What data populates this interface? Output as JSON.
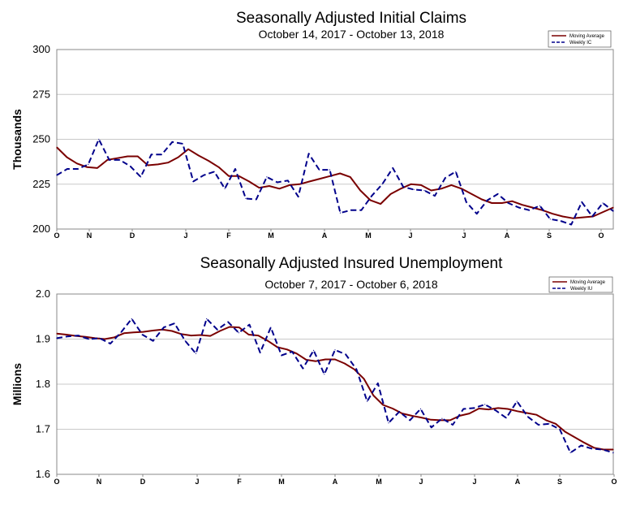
{
  "chart_data": [
    {
      "type": "line",
      "title": "Seasonally Adjusted Initial Claims",
      "subtitle": "October 14, 2017 - October 13, 2018",
      "xlabel": "",
      "ylabel": "Thousands",
      "ylim": [
        200,
        300
      ],
      "yticks": [
        "300",
        "275",
        "250",
        "225",
        "200"
      ],
      "ytick_values": [
        300,
        275,
        250,
        225,
        200
      ],
      "xtick_labels": [
        "O",
        "N",
        "D",
        "J",
        "F",
        "M",
        "A",
        "M",
        "J",
        "J",
        "A",
        "S",
        "O"
      ],
      "grid": "horizontal",
      "legend": "top-right",
      "series": [
        {
          "name": "Moving Average",
          "style": "solid",
          "color": "#7a0000",
          "values": [
            245.5,
            240,
            236.5,
            234.5,
            234,
            238.5,
            239.5,
            240.5,
            240.5,
            235.5,
            236,
            237,
            240,
            244.5,
            241,
            238,
            234.5,
            229.5,
            229.5,
            226.5,
            223,
            224,
            222.5,
            224.5,
            225,
            226.5,
            228,
            229.5,
            231,
            229,
            221.5,
            216,
            214,
            219.5,
            222.5,
            225,
            224.5,
            221.5,
            222.5,
            224.5,
            222.5,
            219.5,
            216.5,
            214.5,
            214.5,
            215.5,
            213.5,
            212,
            210.5,
            208.5,
            207,
            206,
            206.5,
            207,
            209.5,
            212
          ]
        },
        {
          "name": "Weekly IC",
          "style": "dashed",
          "color": "#00008b",
          "values": [
            230,
            233.5,
            233.5,
            236,
            250,
            238.5,
            238.5,
            235,
            229,
            241.5,
            241.5,
            248.5,
            247.5,
            226.5,
            230,
            232,
            222.5,
            233.5,
            217,
            216.5,
            229,
            226,
            227,
            218,
            242,
            233,
            233,
            209,
            210.5,
            210.5,
            218.5,
            225,
            234,
            223.5,
            222,
            221.5,
            218.5,
            228.5,
            232,
            215,
            208.5,
            216,
            219.5,
            214.5,
            212,
            210.5,
            213,
            205.5,
            204.5,
            202.5,
            215,
            207,
            214.5,
            210
          ]
        }
      ]
    },
    {
      "type": "line",
      "title": "Seasonally Adjusted Insured Unemployment",
      "subtitle": "October 7, 2017 - October 6, 2018",
      "xlabel": "",
      "ylabel": "Millions",
      "ylim": [
        1.6,
        2.0
      ],
      "yticks": [
        "2.0",
        "1.9",
        "1.8",
        "1.7",
        "1.6"
      ],
      "ytick_values": [
        2.0,
        1.9,
        1.8,
        1.7,
        1.6
      ],
      "xtick_labels": [
        "O",
        "N",
        "D",
        "J",
        "F",
        "M",
        "A",
        "M",
        "J",
        "J",
        "A",
        "S",
        "O"
      ],
      "grid": "horizontal",
      "legend": "top-right",
      "series": [
        {
          "name": "Moving Average",
          "style": "solid",
          "color": "#7a0000",
          "values": [
            1.912,
            1.91,
            1.907,
            1.905,
            1.902,
            1.9,
            1.904,
            1.913,
            1.915,
            1.916,
            1.919,
            1.921,
            1.918,
            1.911,
            1.908,
            1.909,
            1.907,
            1.918,
            1.927,
            1.926,
            1.91,
            1.908,
            1.896,
            1.882,
            1.877,
            1.868,
            1.854,
            1.851,
            1.855,
            1.855,
            1.846,
            1.833,
            1.812,
            1.775,
            1.754,
            1.746,
            1.735,
            1.73,
            1.726,
            1.721,
            1.72,
            1.72,
            1.73,
            1.735,
            1.746,
            1.744,
            1.747,
            1.745,
            1.74,
            1.736,
            1.732,
            1.72,
            1.712,
            1.694,
            1.682,
            1.67,
            1.659,
            1.655,
            1.655
          ]
        },
        {
          "name": "Weekly IU",
          "style": "dashed",
          "color": "#00008b",
          "values": [
            1.902,
            1.906,
            1.908,
            1.9,
            1.902,
            1.89,
            1.915,
            1.945,
            1.91,
            1.896,
            1.926,
            1.935,
            1.896,
            1.868,
            1.945,
            1.921,
            1.938,
            1.914,
            1.932,
            1.87,
            1.926,
            1.864,
            1.872,
            1.835,
            1.875,
            1.822,
            1.876,
            1.866,
            1.833,
            1.762,
            1.802,
            1.714,
            1.739,
            1.72,
            1.745,
            1.704,
            1.724,
            1.71,
            1.745,
            1.747,
            1.755,
            1.742,
            1.725,
            1.762,
            1.728,
            1.71,
            1.712,
            1.7,
            1.648,
            1.664,
            1.657,
            1.655,
            1.648
          ]
        }
      ]
    }
  ]
}
